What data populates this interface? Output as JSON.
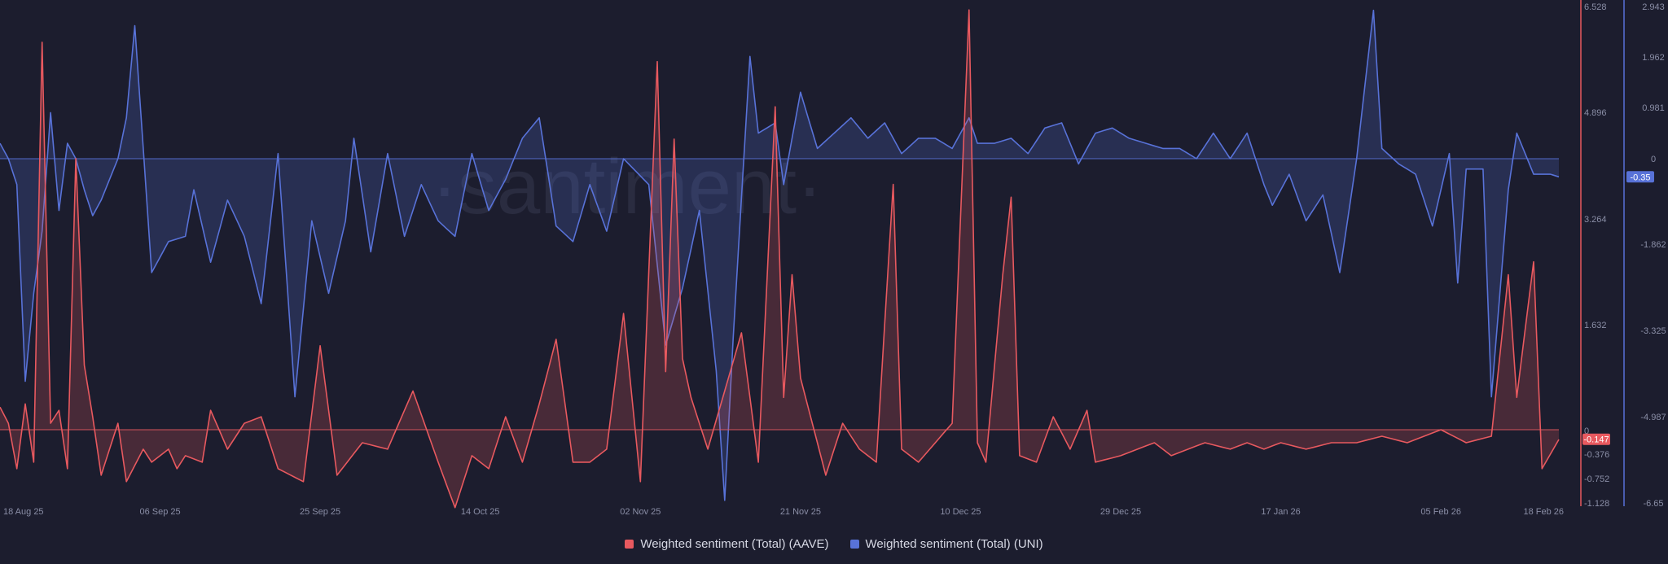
{
  "colors": {
    "background": "#1c1d2e",
    "aave": "#e8595f",
    "uni": "#5872d8",
    "axis_text": "#8a8ea6",
    "baseline": "#e8595f",
    "baseline_uni": "#5872d8"
  },
  "watermark": "·santiment·",
  "chart_data": {
    "type": "area",
    "title": "",
    "x_labels": [
      "18 Aug 25",
      "06 Sep 25",
      "25 Sep 25",
      "14 Oct 25",
      "02 Nov 25",
      "21 Nov 25",
      "10 Dec 25",
      "29 Dec 25",
      "17 Jan 26",
      "05 Feb 26",
      "18 Feb 26"
    ],
    "x_label_indices": [
      0,
      19,
      38,
      57,
      76,
      95,
      114,
      133,
      152,
      171,
      185
    ],
    "x_count": 186,
    "series": [
      {
        "name": "Weighted sentiment (Total) (AAVE)",
        "axis": "left",
        "color": "#e8595f",
        "ylim": [
          -1.128,
          6.528
        ],
        "ticks": [
          "6.528",
          "4.896",
          "3.264",
          "1.632",
          "0",
          "-0.376",
          "-0.752",
          "-1.128"
        ],
        "current_value": "-0.147",
        "spikes": [
          [
            0,
            0.35
          ],
          [
            1,
            0.1
          ],
          [
            2,
            -0.6
          ],
          [
            3,
            0.4
          ],
          [
            4,
            -0.5
          ],
          [
            5,
            6.0
          ],
          [
            6,
            0.1
          ],
          [
            7,
            0.3
          ],
          [
            8,
            -0.6
          ],
          [
            9,
            4.2
          ],
          [
            10,
            1.0
          ],
          [
            11,
            0.2
          ],
          [
            12,
            -0.7
          ],
          [
            14,
            0.1
          ],
          [
            15,
            -0.8
          ],
          [
            17,
            -0.3
          ],
          [
            18,
            -0.5
          ],
          [
            20,
            -0.3
          ],
          [
            21,
            -0.6
          ],
          [
            22,
            -0.4
          ],
          [
            24,
            -0.5
          ],
          [
            25,
            0.3
          ],
          [
            27,
            -0.3
          ],
          [
            29,
            0.1
          ],
          [
            31,
            0.2
          ],
          [
            33,
            -0.6
          ],
          [
            36,
            -0.8
          ],
          [
            38,
            1.3
          ],
          [
            40,
            -0.7
          ],
          [
            43,
            -0.2
          ],
          [
            46,
            -0.3
          ],
          [
            49,
            0.6
          ],
          [
            52,
            -0.5
          ],
          [
            54,
            -1.2
          ],
          [
            56,
            -0.4
          ],
          [
            58,
            -0.6
          ],
          [
            60,
            0.2
          ],
          [
            62,
            -0.5
          ],
          [
            64,
            0.4
          ],
          [
            66,
            1.4
          ],
          [
            68,
            -0.5
          ],
          [
            70,
            -0.5
          ],
          [
            72,
            -0.3
          ],
          [
            74,
            1.8
          ],
          [
            76,
            -0.8
          ],
          [
            78,
            5.7
          ],
          [
            79,
            0.9
          ],
          [
            80,
            4.5
          ],
          [
            81,
            1.1
          ],
          [
            82,
            0.5
          ],
          [
            84,
            -0.3
          ],
          [
            86,
            0.6
          ],
          [
            88,
            1.5
          ],
          [
            89,
            0.5
          ],
          [
            90,
            -0.5
          ],
          [
            92,
            5.0
          ],
          [
            93,
            0.5
          ],
          [
            94,
            2.4
          ],
          [
            95,
            0.8
          ],
          [
            96,
            0.3
          ],
          [
            98,
            -0.7
          ],
          [
            100,
            0.1
          ],
          [
            102,
            -0.3
          ],
          [
            104,
            -0.5
          ],
          [
            106,
            3.8
          ],
          [
            107,
            -0.3
          ],
          [
            109,
            -0.5
          ],
          [
            111,
            -0.2
          ],
          [
            113,
            0.1
          ],
          [
            115,
            6.5
          ],
          [
            116,
            -0.2
          ],
          [
            117,
            -0.5
          ],
          [
            119,
            2.4
          ],
          [
            120,
            3.6
          ],
          [
            121,
            -0.4
          ],
          [
            123,
            -0.5
          ],
          [
            125,
            0.2
          ],
          [
            127,
            -0.3
          ],
          [
            129,
            0.3
          ],
          [
            130,
            -0.5
          ],
          [
            133,
            -0.4
          ],
          [
            135,
            -0.3
          ],
          [
            137,
            -0.2
          ],
          [
            139,
            -0.4
          ],
          [
            141,
            -0.3
          ],
          [
            143,
            -0.2
          ],
          [
            146,
            -0.3
          ],
          [
            148,
            -0.2
          ],
          [
            150,
            -0.3
          ],
          [
            152,
            -0.2
          ],
          [
            155,
            -0.3
          ],
          [
            158,
            -0.2
          ],
          [
            161,
            -0.2
          ],
          [
            164,
            -0.1
          ],
          [
            167,
            -0.2
          ],
          [
            169,
            -0.1
          ],
          [
            171,
            0.0
          ],
          [
            174,
            -0.2
          ],
          [
            177,
            -0.1
          ],
          [
            179,
            2.4
          ],
          [
            180,
            0.5
          ],
          [
            182,
            2.6
          ],
          [
            183,
            -0.6
          ],
          [
            185,
            -0.15
          ]
        ]
      },
      {
        "name": "Weighted sentiment (Total) (UNI)",
        "axis": "right",
        "color": "#5872d8",
        "ylim": [
          -6.65,
          2.943
        ],
        "ticks": [
          "2.943",
          "1.962",
          "0.981",
          "0",
          "-1.862",
          "-3.325",
          "-4.987",
          "-6.65"
        ],
        "current_value": "-0.35",
        "spikes": [
          [
            0,
            0.3
          ],
          [
            1,
            0.0
          ],
          [
            2,
            -0.5
          ],
          [
            3,
            -4.3
          ],
          [
            4,
            -2.6
          ],
          [
            5,
            -1.4
          ],
          [
            6,
            0.9
          ],
          [
            7,
            -1.0
          ],
          [
            8,
            0.3
          ],
          [
            9,
            0.0
          ],
          [
            10,
            -0.6
          ],
          [
            11,
            -1.1
          ],
          [
            12,
            -0.8
          ],
          [
            14,
            0.0
          ],
          [
            15,
            0.8
          ],
          [
            16,
            2.6
          ],
          [
            17,
            0.2
          ],
          [
            18,
            -2.2
          ],
          [
            20,
            -1.6
          ],
          [
            22,
            -1.5
          ],
          [
            23,
            -0.6
          ],
          [
            25,
            -2.0
          ],
          [
            27,
            -0.8
          ],
          [
            29,
            -1.5
          ],
          [
            31,
            -2.8
          ],
          [
            33,
            0.1
          ],
          [
            35,
            -4.6
          ],
          [
            37,
            -1.2
          ],
          [
            39,
            -2.6
          ],
          [
            41,
            -1.2
          ],
          [
            42,
            0.4
          ],
          [
            44,
            -1.8
          ],
          [
            46,
            0.1
          ],
          [
            48,
            -1.5
          ],
          [
            50,
            -0.5
          ],
          [
            52,
            -1.2
          ],
          [
            54,
            -1.5
          ],
          [
            56,
            0.1
          ],
          [
            58,
            -1.0
          ],
          [
            60,
            -0.4
          ],
          [
            62,
            0.4
          ],
          [
            64,
            0.8
          ],
          [
            66,
            -1.3
          ],
          [
            68,
            -1.6
          ],
          [
            70,
            -0.5
          ],
          [
            72,
            -1.4
          ],
          [
            74,
            0.0
          ],
          [
            77,
            -0.5
          ],
          [
            79,
            -3.6
          ],
          [
            81,
            -2.5
          ],
          [
            83,
            -1.0
          ],
          [
            85,
            -4.1
          ],
          [
            86,
            -6.6
          ],
          [
            87,
            -3.5
          ],
          [
            89,
            2.0
          ],
          [
            90,
            0.5
          ],
          [
            92,
            0.7
          ],
          [
            93,
            -0.5
          ],
          [
            95,
            1.3
          ],
          [
            97,
            0.2
          ],
          [
            99,
            0.5
          ],
          [
            101,
            0.8
          ],
          [
            103,
            0.4
          ],
          [
            105,
            0.7
          ],
          [
            107,
            0.1
          ],
          [
            109,
            0.4
          ],
          [
            111,
            0.4
          ],
          [
            113,
            0.2
          ],
          [
            115,
            0.8
          ],
          [
            116,
            0.3
          ],
          [
            118,
            0.3
          ],
          [
            120,
            0.4
          ],
          [
            122,
            0.1
          ],
          [
            124,
            0.6
          ],
          [
            126,
            0.7
          ],
          [
            128,
            -0.1
          ],
          [
            130,
            0.5
          ],
          [
            132,
            0.6
          ],
          [
            134,
            0.4
          ],
          [
            136,
            0.3
          ],
          [
            138,
            0.2
          ],
          [
            140,
            0.2
          ],
          [
            142,
            0.0
          ],
          [
            144,
            0.5
          ],
          [
            146,
            0.0
          ],
          [
            148,
            0.5
          ],
          [
            150,
            -0.5
          ],
          [
            151,
            -0.9
          ],
          [
            153,
            -0.3
          ],
          [
            155,
            -1.2
          ],
          [
            157,
            -0.7
          ],
          [
            159,
            -2.2
          ],
          [
            161,
            0.0
          ],
          [
            163,
            2.9
          ],
          [
            164,
            0.2
          ],
          [
            166,
            -0.1
          ],
          [
            168,
            -0.3
          ],
          [
            170,
            -1.3
          ],
          [
            172,
            0.1
          ],
          [
            173,
            -2.4
          ],
          [
            174,
            -0.2
          ],
          [
            176,
            -0.2
          ],
          [
            177,
            -4.6
          ],
          [
            179,
            -0.6
          ],
          [
            180,
            0.5
          ],
          [
            182,
            -0.3
          ],
          [
            184,
            -0.3
          ],
          [
            185,
            -0.35
          ]
        ]
      }
    ]
  }
}
